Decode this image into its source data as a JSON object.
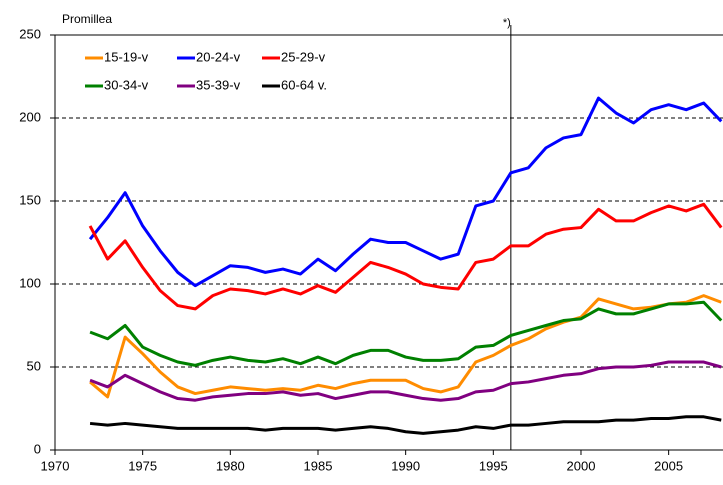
{
  "chart_data": {
    "type": "line",
    "y_label": "Promillea",
    "annotation": {
      "x": 1996,
      "label": "*)"
    },
    "x": [
      1972,
      1973,
      1974,
      1975,
      1976,
      1977,
      1978,
      1979,
      1980,
      1981,
      1982,
      1983,
      1984,
      1985,
      1986,
      1987,
      1988,
      1989,
      1990,
      1991,
      1992,
      1993,
      1994,
      1995,
      1996,
      1997,
      1998,
      1999,
      2000,
      2001,
      2002,
      2003,
      2004,
      2005,
      2006,
      2007,
      2008
    ],
    "series": [
      {
        "name": "15-19-v",
        "color": "#ff8c00",
        "values": [
          41,
          32,
          68,
          58,
          47,
          38,
          34,
          36,
          38,
          37,
          36,
          37,
          36,
          39,
          37,
          40,
          42,
          42,
          42,
          37,
          35,
          38,
          53,
          57,
          63,
          67,
          73,
          77,
          80,
          91,
          88,
          85,
          86,
          88,
          89,
          93,
          89
        ]
      },
      {
        "name": "20-24-v",
        "color": "#0000ff",
        "values": [
          127,
          140,
          155,
          135,
          120,
          107,
          99,
          105,
          111,
          110,
          107,
          109,
          106,
          115,
          108,
          118,
          127,
          125,
          125,
          120,
          115,
          118,
          147,
          150,
          167,
          170,
          182,
          188,
          190,
          212,
          203,
          197,
          205,
          208,
          205,
          209,
          198
        ]
      },
      {
        "name": "25-29-v",
        "color": "#ff0000",
        "values": [
          135,
          115,
          126,
          110,
          96,
          87,
          85,
          93,
          97,
          96,
          94,
          97,
          94,
          99,
          95,
          104,
          113,
          110,
          106,
          100,
          98,
          97,
          113,
          115,
          123,
          123,
          130,
          133,
          134,
          145,
          138,
          138,
          143,
          147,
          144,
          148,
          134
        ]
      },
      {
        "name": "30-34-v",
        "color": "#008000",
        "values": [
          71,
          67,
          75,
          62,
          57,
          53,
          51,
          54,
          56,
          54,
          53,
          55,
          52,
          56,
          52,
          57,
          60,
          60,
          56,
          54,
          54,
          55,
          62,
          63,
          69,
          72,
          75,
          78,
          79,
          85,
          82,
          82,
          85,
          88,
          88,
          89,
          78
        ]
      },
      {
        "name": "35-39-v",
        "color": "#800080",
        "values": [
          42,
          38,
          45,
          40,
          35,
          31,
          30,
          32,
          33,
          34,
          34,
          35,
          33,
          34,
          31,
          33,
          35,
          35,
          33,
          31,
          30,
          31,
          35,
          36,
          40,
          41,
          43,
          45,
          46,
          49,
          50,
          50,
          51,
          53,
          53,
          53,
          50
        ]
      },
      {
        "name": "60-64 v.",
        "color": "#000000",
        "values": [
          16,
          15,
          16,
          15,
          14,
          13,
          13,
          13,
          13,
          13,
          12,
          13,
          13,
          13,
          12,
          13,
          14,
          13,
          11,
          10,
          11,
          12,
          14,
          13,
          15,
          15,
          16,
          17,
          17,
          17,
          18,
          18,
          19,
          19,
          20,
          20,
          18
        ]
      }
    ],
    "xlim": [
      1970,
      2008.1
    ],
    "xticks": [
      1970,
      1975,
      1980,
      1985,
      1990,
      1995,
      2000,
      2005
    ],
    "ylim": [
      0,
      250
    ],
    "yticks": [
      0,
      50,
      100,
      150,
      200,
      250
    ],
    "grid": true
  }
}
